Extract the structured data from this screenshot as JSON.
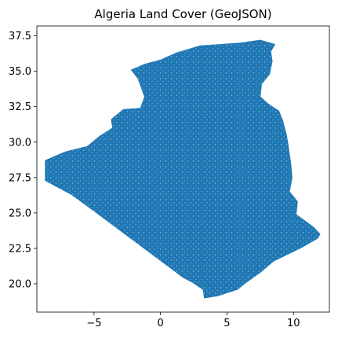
{
  "chart_data": {
    "type": "map",
    "title": "Algeria Land Cover (GeoJSON)",
    "xlabel": "",
    "ylabel": "",
    "xlim": [
      -9.3,
      12.7
    ],
    "ylim": [
      18.0,
      38.2
    ],
    "x_ticks": [
      {
        "value": -5,
        "label": "−5"
      },
      {
        "value": 0,
        "label": "0"
      },
      {
        "value": 5,
        "label": "5"
      },
      {
        "value": 10,
        "label": "10"
      }
    ],
    "y_ticks": [
      {
        "value": 20.0,
        "label": "20.0"
      },
      {
        "value": 22.5,
        "label": "22.5"
      },
      {
        "value": 25.0,
        "label": "25.0"
      },
      {
        "value": 27.5,
        "label": "27.5"
      },
      {
        "value": 30.0,
        "label": "30.0"
      },
      {
        "value": 32.5,
        "label": "32.5"
      },
      {
        "value": 35.0,
        "label": "35.0"
      },
      {
        "value": 37.5,
        "label": "37.5"
      }
    ],
    "fill_color": "#1f77b4",
    "grid": false,
    "boundary_lonlat": [
      [
        -8.67,
        27.29
      ],
      [
        -8.67,
        28.7
      ],
      [
        -7.2,
        29.3
      ],
      [
        -5.5,
        29.7
      ],
      [
        -4.6,
        30.4
      ],
      [
        -3.6,
        31.0
      ],
      [
        -3.7,
        31.6
      ],
      [
        -2.8,
        32.3
      ],
      [
        -1.5,
        32.4
      ],
      [
        -1.2,
        33.2
      ],
      [
        -1.7,
        34.5
      ],
      [
        -2.2,
        35.1
      ],
      [
        -1.2,
        35.5
      ],
      [
        0.0,
        35.8
      ],
      [
        1.2,
        36.3
      ],
      [
        3.0,
        36.8
      ],
      [
        4.6,
        36.9
      ],
      [
        6.0,
        37.0
      ],
      [
        7.5,
        37.2
      ],
      [
        8.6,
        36.9
      ],
      [
        8.3,
        36.4
      ],
      [
        8.4,
        35.7
      ],
      [
        8.2,
        34.8
      ],
      [
        7.6,
        34.1
      ],
      [
        7.5,
        33.2
      ],
      [
        8.1,
        32.7
      ],
      [
        8.9,
        32.2
      ],
      [
        9.2,
        31.5
      ],
      [
        9.5,
        30.4
      ],
      [
        9.6,
        29.8
      ],
      [
        9.8,
        28.5
      ],
      [
        9.9,
        27.5
      ],
      [
        9.7,
        26.5
      ],
      [
        10.3,
        25.8
      ],
      [
        10.2,
        24.9
      ],
      [
        11.5,
        24.0
      ],
      [
        12.0,
        23.5
      ],
      [
        11.8,
        23.2
      ],
      [
        10.5,
        22.5
      ],
      [
        8.5,
        21.6
      ],
      [
        7.5,
        20.8
      ],
      [
        6.3,
        20.0
      ],
      [
        5.8,
        19.6
      ],
      [
        4.3,
        19.15
      ],
      [
        3.3,
        19.0
      ],
      [
        3.2,
        19.6
      ],
      [
        2.4,
        20.1
      ],
      [
        1.6,
        20.5
      ],
      [
        1.2,
        20.8
      ],
      [
        -4.8,
        25.0
      ],
      [
        -6.7,
        26.3
      ],
      [
        -8.67,
        27.29
      ]
    ]
  }
}
